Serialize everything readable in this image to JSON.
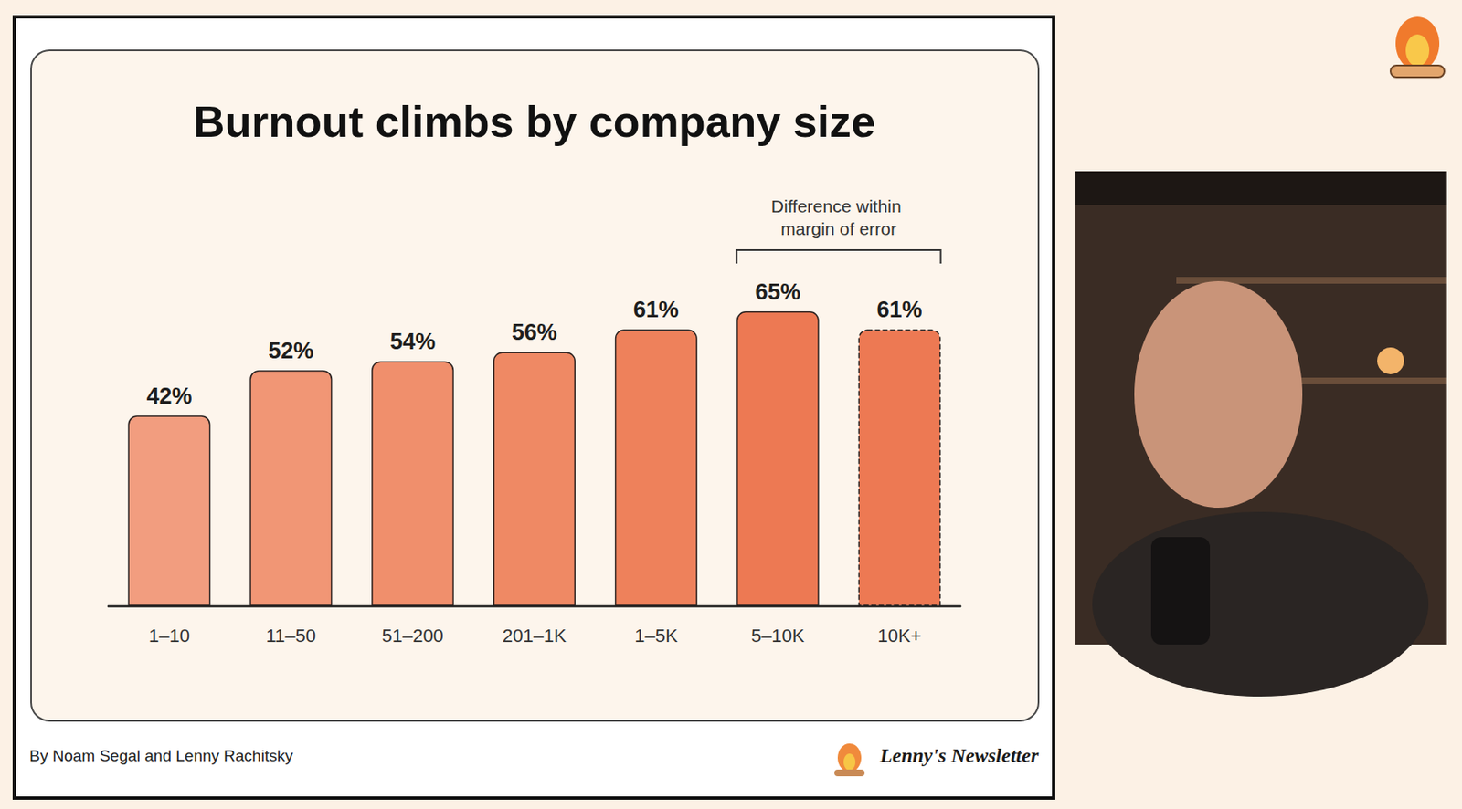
{
  "chart_data": {
    "type": "bar",
    "title": "Burnout climbs by company size",
    "categories": [
      "1–10",
      "11–50",
      "51–200",
      "201–1K",
      "1–5K",
      "5–10K",
      "10K+"
    ],
    "values": [
      42,
      52,
      54,
      56,
      61,
      65,
      61
    ],
    "value_labels": [
      "42%",
      "52%",
      "54%",
      "56%",
      "61%",
      "65%",
      "61%"
    ],
    "colors": [
      "#f29d7f",
      "#f19675",
      "#f08f6c",
      "#ef8964",
      "#ee815b",
      "#ed7953",
      "#ed7953"
    ],
    "ylim": [
      0,
      75
    ],
    "data_labels": true,
    "tick_labels": "x",
    "grid": false,
    "annotation": {
      "text": "Difference within margin of error",
      "from": "5–10K",
      "to": "10K+"
    },
    "footer": "By Noam Segal and Lenny Rachitsky",
    "brand": "Lenny's Newsletter"
  }
}
